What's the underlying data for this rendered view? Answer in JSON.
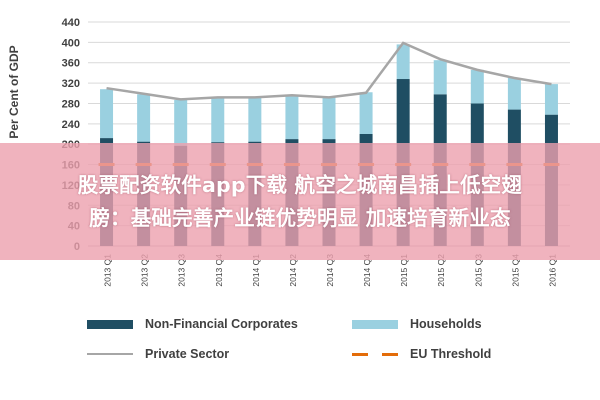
{
  "chart_data": {
    "type": "bar",
    "stacked": true,
    "categories": [
      "2013 Q1",
      "2013 Q2",
      "2013 Q3",
      "2013 Q4",
      "2014 Q1",
      "2014 Q2",
      "2014 Q3",
      "2014 Q4",
      "2015 Q1",
      "2015 Q2",
      "2015 Q3",
      "2015 Q4",
      "2016 Q1"
    ],
    "series": [
      {
        "name": "Non-Financial Corporates",
        "kind": "bar",
        "color": "#1f4e63",
        "values": [
          212,
          205,
          197,
          204,
          205,
          210,
          210,
          220,
          328,
          298,
          280,
          268,
          258
        ]
      },
      {
        "name": "Households",
        "kind": "bar",
        "color": "#9ad0e0",
        "values": [
          96,
          93,
          90,
          89,
          87,
          86,
          83,
          82,
          68,
          67,
          66,
          62,
          60
        ]
      },
      {
        "name": "Private Sector",
        "kind": "line",
        "color": "#a6a6a6",
        "values": [
          310,
          299,
          288,
          292,
          292,
          296,
          292,
          301,
          399,
          367,
          346,
          330,
          318
        ]
      },
      {
        "name": "EU Threshold",
        "kind": "dashed",
        "color": "#e36c09",
        "values": [
          160,
          160,
          160,
          160,
          160,
          160,
          160,
          160,
          160,
          160,
          160,
          160,
          160
        ]
      }
    ],
    "yticks": [
      0,
      40,
      80,
      120,
      160,
      200,
      240,
      280,
      320,
      360,
      400,
      440
    ],
    "ylim": [
      0,
      440
    ],
    "ylabel": "Per Cent of GDP",
    "xlabel": "",
    "grid": true,
    "legend_position": "bottom"
  },
  "overlay": {
    "line1": "股票配资软件app下载 航空之城南昌插上低空翅",
    "line2": "膀：基础完善产业链优势明显 加速培育新业态"
  }
}
